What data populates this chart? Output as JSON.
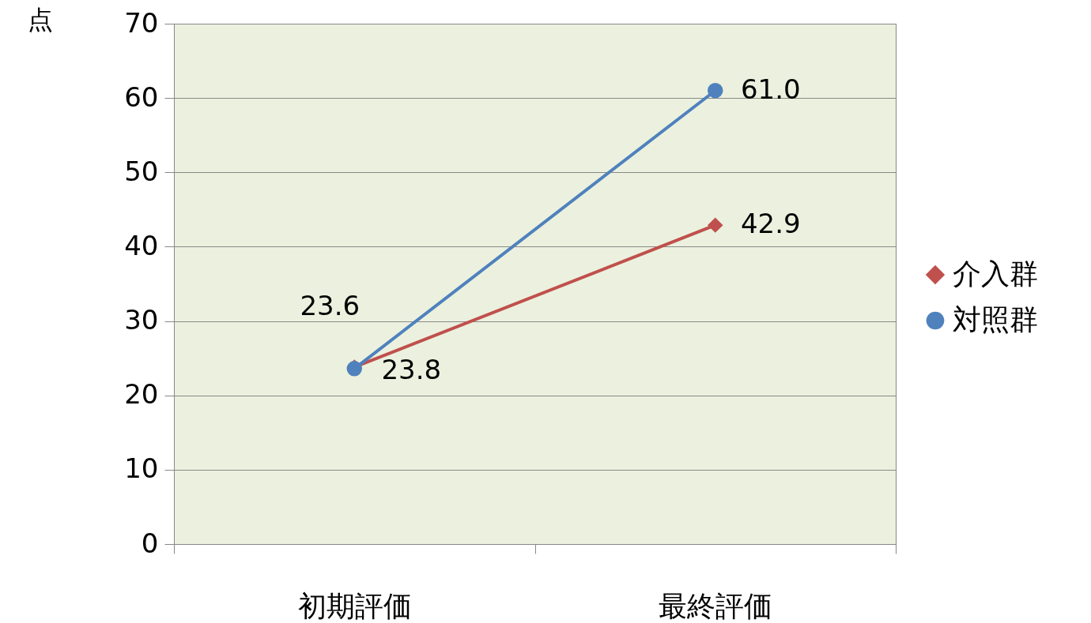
{
  "chart_data": {
    "type": "line",
    "ylabel": "点",
    "categories": [
      "初期評価",
      "最終評価"
    ],
    "series": [
      {
        "name": "介入群",
        "color": "#c0504d",
        "marker": "diamond",
        "values": [
          23.8,
          42.9
        ],
        "value_labels": [
          "23.8",
          "42.9"
        ]
      },
      {
        "name": "対照群",
        "color": "#4f81bd",
        "marker": "circle",
        "values": [
          23.6,
          61.0
        ],
        "value_labels": [
          "23.6",
          "61.0"
        ]
      }
    ],
    "ylim": [
      0,
      70
    ],
    "yticks": [
      0,
      10,
      20,
      30,
      40,
      50,
      60,
      70
    ],
    "grid": "y",
    "legend": "right"
  }
}
